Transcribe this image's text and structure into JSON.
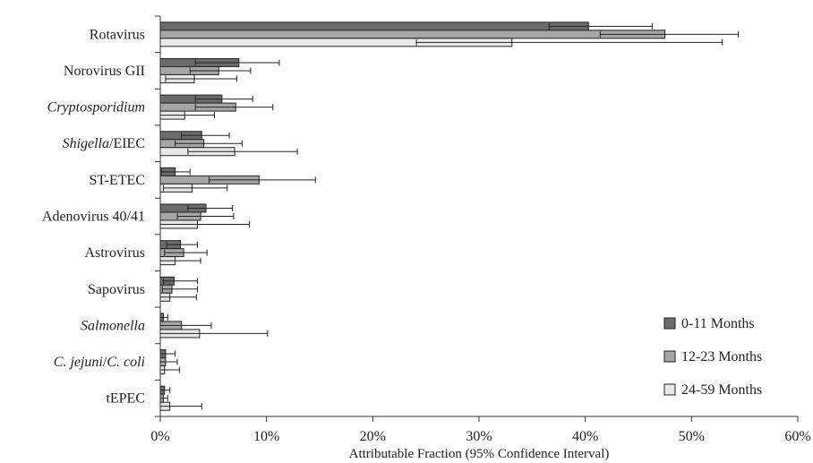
{
  "chart_data": {
    "type": "bar",
    "orientation": "horizontal",
    "categories": [
      {
        "name": "Rotavirus",
        "italic": []
      },
      {
        "name": "Norovirus GII",
        "italic": []
      },
      {
        "name": "Cryptosporidium",
        "italic": [
          "Cryptosporidium"
        ]
      },
      {
        "name": "Shigella/EIEC",
        "italic": [
          "Shigella"
        ]
      },
      {
        "name": "ST-ETEC",
        "italic": []
      },
      {
        "name": "Adenovirus 40/41",
        "italic": []
      },
      {
        "name": "Astrovirus",
        "italic": []
      },
      {
        "name": "Sapovirus",
        "italic": []
      },
      {
        "name": "Salmonella",
        "italic": [
          "Salmonella"
        ]
      },
      {
        "name": "C. jejuni/C. coli",
        "italic": [
          "C. jejuni",
          "C. coli"
        ]
      },
      {
        "name": "tEPEC",
        "italic": []
      }
    ],
    "series": [
      {
        "name": "0-11 Months",
        "color": "#6b6b6b",
        "values": [
          40.3,
          7.4,
          5.8,
          3.9,
          1.4,
          4.3,
          1.9,
          1.3,
          0.3,
          0.5,
          0.4
        ],
        "ci_low": [
          36.6,
          3.3,
          3.3,
          2.0,
          0.1,
          2.6,
          0.6,
          0.3,
          0.0,
          0.0,
          0.0
        ],
        "ci_high": [
          46.3,
          11.2,
          8.7,
          6.5,
          2.8,
          6.8,
          3.5,
          3.5,
          0.7,
          1.4,
          0.9
        ]
      },
      {
        "name": "12-23 Months",
        "color": "#a6a6a6",
        "values": [
          47.5,
          5.5,
          7.1,
          4.1,
          9.3,
          3.8,
          2.2,
          1.1,
          2.0,
          0.5,
          0.3
        ],
        "ci_low": [
          41.4,
          2.8,
          3.3,
          1.4,
          4.6,
          1.6,
          0.4,
          0.2,
          0.0,
          0.0,
          0.0
        ],
        "ci_high": [
          54.4,
          8.5,
          10.6,
          7.7,
          14.6,
          6.9,
          4.4,
          3.5,
          4.8,
          1.6,
          0.7
        ]
      },
      {
        "name": "24-59 Months",
        "color": "#e8e8e8",
        "values": [
          33.1,
          3.2,
          2.3,
          7.0,
          3.0,
          3.5,
          1.4,
          0.9,
          3.7,
          0.4,
          0.9
        ],
        "ci_low": [
          24.1,
          0.5,
          0.0,
          2.6,
          0.3,
          0.0,
          0.0,
          0.0,
          0.0,
          0.0,
          0.0
        ],
        "ci_high": [
          52.9,
          7.2,
          5.1,
          12.9,
          6.3,
          8.4,
          3.8,
          3.4,
          10.1,
          1.8,
          3.9
        ]
      }
    ],
    "xlim": [
      0,
      60
    ],
    "xticks": [
      0,
      10,
      20,
      30,
      40,
      50,
      60
    ],
    "tick_suffix": "%",
    "xlabel": "Attributable Fraction (95% Confidence Interval)",
    "legend_position": "bottom-right",
    "grid": false
  }
}
